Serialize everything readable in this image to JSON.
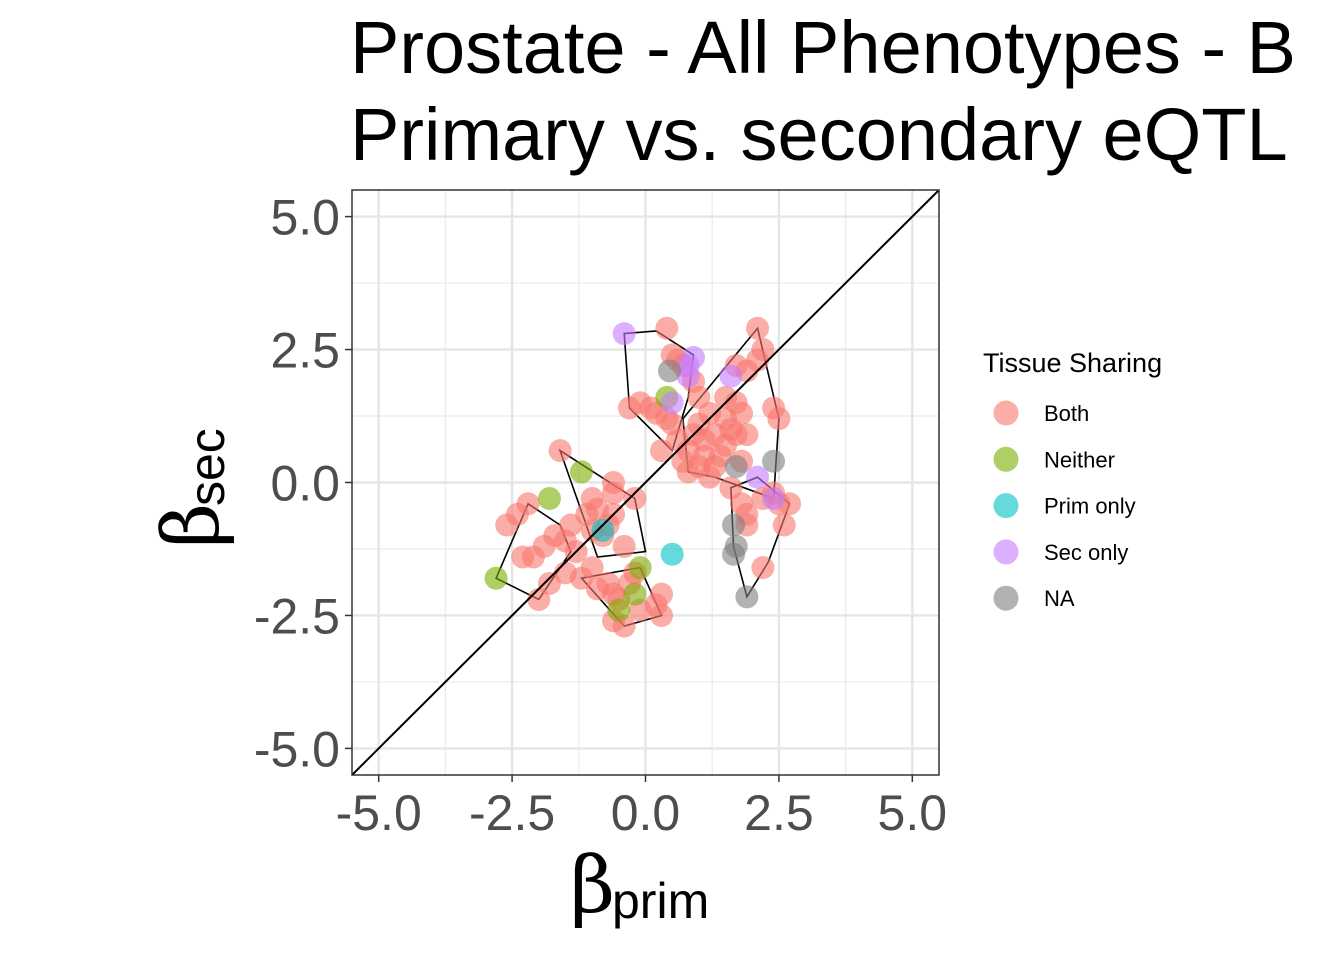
{
  "chart_data": {
    "type": "scatter",
    "title_lines": [
      "Prostate - All Phenotypes - B",
      "Primary vs. secondary eQTL"
    ],
    "xlabel": {
      "symbol": "β",
      "sub": "prim"
    },
    "ylabel": {
      "symbol": "β",
      "sub": "sec"
    },
    "xlim": [
      -5.5,
      5.5
    ],
    "ylim": [
      -5.5,
      5.5
    ],
    "xticks": [
      -5.0,
      -2.5,
      0.0,
      2.5,
      5.0
    ],
    "yticks": [
      -5.0,
      -2.5,
      0.0,
      2.5,
      5.0
    ],
    "xtick_labels": [
      "-5.0",
      "-2.5",
      "0.0",
      "2.5",
      "5.0"
    ],
    "ytick_labels": [
      "-5.0",
      "-2.5",
      "0.0",
      "2.5",
      "5.0"
    ],
    "grid": true,
    "reference_line": "y = x",
    "legend": {
      "title": "Tissue Sharing",
      "position": "right"
    },
    "series": [
      {
        "name": "Both",
        "color": "#F8766D",
        "points": [
          [
            -1.6,
            0.6
          ],
          [
            -2.2,
            -0.4
          ],
          [
            -2.4,
            -0.6
          ],
          [
            -2.6,
            -0.8
          ],
          [
            -1.9,
            -1.2
          ],
          [
            -2.1,
            -1.4
          ],
          [
            -2.3,
            -1.4
          ],
          [
            -1.8,
            -1.9
          ],
          [
            -1.5,
            -1.7
          ],
          [
            -2.0,
            -2.2
          ],
          [
            -1.7,
            -1.0
          ],
          [
            -1.5,
            -1.1
          ],
          [
            -1.3,
            -1.3
          ],
          [
            -1.4,
            -0.8
          ],
          [
            -1.0,
            -0.3
          ],
          [
            -1.1,
            -0.6
          ],
          [
            -1.0,
            -0.9
          ],
          [
            -0.8,
            -1.0
          ],
          [
            -0.7,
            -0.8
          ],
          [
            -0.6,
            -0.6
          ],
          [
            -0.9,
            -0.5
          ],
          [
            -0.6,
            -0.2
          ],
          [
            -0.6,
            0.0
          ],
          [
            -0.2,
            -0.3
          ],
          [
            -0.4,
            -1.2
          ],
          [
            -1.2,
            -1.8
          ],
          [
            -1.0,
            -1.6
          ],
          [
            -0.9,
            -2.0
          ],
          [
            -0.7,
            -1.9
          ],
          [
            -0.6,
            -2.1
          ],
          [
            -0.5,
            -2.2
          ],
          [
            -0.3,
            -1.9
          ],
          [
            -0.2,
            -1.7
          ],
          [
            -0.6,
            -2.6
          ],
          [
            -0.4,
            -2.7
          ],
          [
            -0.1,
            -2.4
          ],
          [
            0.2,
            -2.3
          ],
          [
            0.3,
            -2.1
          ],
          [
            0.3,
            -2.5
          ],
          [
            -0.3,
            1.4
          ],
          [
            -0.1,
            1.5
          ],
          [
            0.1,
            1.4
          ],
          [
            0.2,
            1.3
          ],
          [
            0.4,
            1.2
          ],
          [
            0.5,
            1.1
          ],
          [
            0.3,
            0.6
          ],
          [
            0.6,
            0.8
          ],
          [
            0.4,
            2.9
          ],
          [
            0.5,
            2.4
          ],
          [
            0.6,
            2.3
          ],
          [
            0.7,
            2.2
          ],
          [
            0.9,
            1.9
          ],
          [
            1.0,
            1.6
          ],
          [
            1.2,
            1.3
          ],
          [
            1.0,
            1.1
          ],
          [
            0.9,
            0.9
          ],
          [
            1.1,
            0.8
          ],
          [
            1.3,
            0.9
          ],
          [
            1.5,
            1.2
          ],
          [
            1.6,
            1.0
          ],
          [
            1.7,
            0.9
          ],
          [
            1.8,
            1.3
          ],
          [
            1.9,
            0.9
          ],
          [
            1.5,
            0.7
          ],
          [
            1.4,
            0.5
          ],
          [
            1.3,
            0.3
          ],
          [
            1.2,
            0.1
          ],
          [
            1.0,
            0.3
          ],
          [
            0.8,
            0.2
          ],
          [
            0.7,
            0.4
          ],
          [
            0.8,
            0.6
          ],
          [
            1.1,
            0.5
          ],
          [
            1.5,
            1.6
          ],
          [
            1.7,
            1.5
          ],
          [
            1.9,
            2.1
          ],
          [
            2.1,
            2.3
          ],
          [
            2.2,
            2.5
          ],
          [
            2.1,
            2.9
          ],
          [
            1.7,
            2.2
          ],
          [
            2.4,
            1.4
          ],
          [
            2.5,
            1.2
          ],
          [
            1.8,
            0.4
          ],
          [
            1.6,
            -0.1
          ],
          [
            1.8,
            -0.4
          ],
          [
            1.9,
            -0.8
          ],
          [
            2.2,
            -0.3
          ],
          [
            2.4,
            -0.2
          ],
          [
            2.5,
            -0.4
          ],
          [
            2.7,
            -0.4
          ],
          [
            2.6,
            -0.8
          ],
          [
            2.2,
            -1.6
          ],
          [
            1.9,
            -0.6
          ]
        ]
      },
      {
        "name": "Neither",
        "color": "#7CAE00",
        "points": [
          [
            -2.8,
            -1.8
          ],
          [
            -1.8,
            -0.3
          ],
          [
            -1.2,
            0.2
          ],
          [
            -0.5,
            -2.4
          ],
          [
            -0.2,
            -2.1
          ],
          [
            -0.1,
            -1.6
          ],
          [
            0.4,
            1.6
          ]
        ]
      },
      {
        "name": "Prim only",
        "color": "#00BFC4",
        "points": [
          [
            0.5,
            -1.35
          ],
          [
            -0.8,
            -0.9
          ]
        ]
      },
      {
        "name": "Sec only",
        "color": "#C77CFF",
        "points": [
          [
            -0.4,
            2.8
          ],
          [
            0.8,
            2.2
          ],
          [
            0.9,
            2.35
          ],
          [
            0.8,
            2.0
          ],
          [
            0.5,
            1.5
          ],
          [
            1.6,
            2.0
          ],
          [
            2.1,
            0.1
          ],
          [
            2.4,
            -0.3
          ]
        ]
      },
      {
        "name": "NA",
        "color": "#7F7F7F",
        "points": [
          [
            0.45,
            2.1
          ],
          [
            1.7,
            0.3
          ],
          [
            2.4,
            0.4
          ],
          [
            1.65,
            -0.8
          ],
          [
            1.7,
            -1.2
          ],
          [
            1.65,
            -1.35
          ],
          [
            1.9,
            -2.15
          ]
        ]
      }
    ],
    "hulls": [
      [
        [
          -0.4,
          2.8
        ],
        [
          0.2,
          2.85
        ],
        [
          0.9,
          2.4
        ],
        [
          0.8,
          1.6
        ],
        [
          0.5,
          0.6
        ],
        [
          -0.3,
          1.4
        ]
      ],
      [
        [
          -1.6,
          0.6
        ],
        [
          -0.2,
          -0.3
        ],
        [
          0.0,
          -1.3
        ],
        [
          -0.9,
          -1.4
        ]
      ],
      [
        [
          -2.2,
          -0.4
        ],
        [
          -1.6,
          -0.8
        ],
        [
          -1.4,
          -1.3
        ],
        [
          -2.0,
          -2.2
        ],
        [
          -2.8,
          -1.8
        ]
      ],
      [
        [
          -1.2,
          -1.8
        ],
        [
          -0.1,
          -1.6
        ],
        [
          0.3,
          -2.5
        ],
        [
          -0.4,
          -2.7
        ]
      ],
      [
        [
          2.1,
          2.9
        ],
        [
          2.5,
          1.2
        ],
        [
          2.4,
          -0.3
        ],
        [
          1.3,
          0.1
        ],
        [
          0.8,
          0.2
        ],
        [
          0.7,
          1.2
        ]
      ],
      [
        [
          1.6,
          -0.1
        ],
        [
          2.1,
          0.1
        ],
        [
          2.7,
          -0.4
        ],
        [
          2.3,
          -1.5
        ],
        [
          1.9,
          -2.15
        ],
        [
          1.65,
          -1.2
        ]
      ]
    ]
  }
}
